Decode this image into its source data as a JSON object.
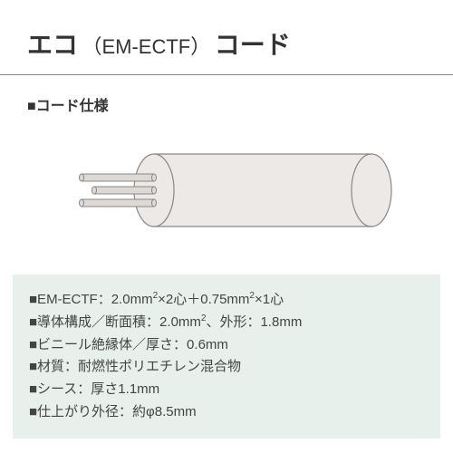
{
  "title": {
    "main": "エコ",
    "paren": "（EM-ECTF）",
    "tail": "コード"
  },
  "section_label": "■コード仕様",
  "diagram": {
    "cable_fill": "#ece9e6",
    "cable_stroke": "#888888",
    "wire_fill": "#dddad6",
    "wire_stroke": "#888888",
    "stroke_width": 1.2
  },
  "spec_box": {
    "background": "#e7f0eb",
    "lines": [
      {
        "prefix": "■EM-ECTF：2.0mm",
        "sup1": "2",
        "mid1": "×2心＋0.75mm",
        "sup2": "2",
        "tail": "×1心"
      },
      {
        "prefix": "■導体構成／断面積：2.0mm",
        "sup1": "2",
        "mid1": "、外形：1.8mm",
        "sup2": "",
        "tail": ""
      },
      {
        "prefix": "■ビニール絶縁体／厚さ：0.6mm",
        "sup1": "",
        "mid1": "",
        "sup2": "",
        "tail": ""
      },
      {
        "prefix": "■材質：耐燃性ポリエチレン混合物",
        "sup1": "",
        "mid1": "",
        "sup2": "",
        "tail": ""
      },
      {
        "prefix": "■シース：厚さ1.1mm",
        "sup1": "",
        "mid1": "",
        "sup2": "",
        "tail": ""
      },
      {
        "prefix": "■仕上がり外径：約φ8.5mm",
        "sup1": "",
        "mid1": "",
        "sup2": "",
        "tail": ""
      }
    ]
  }
}
